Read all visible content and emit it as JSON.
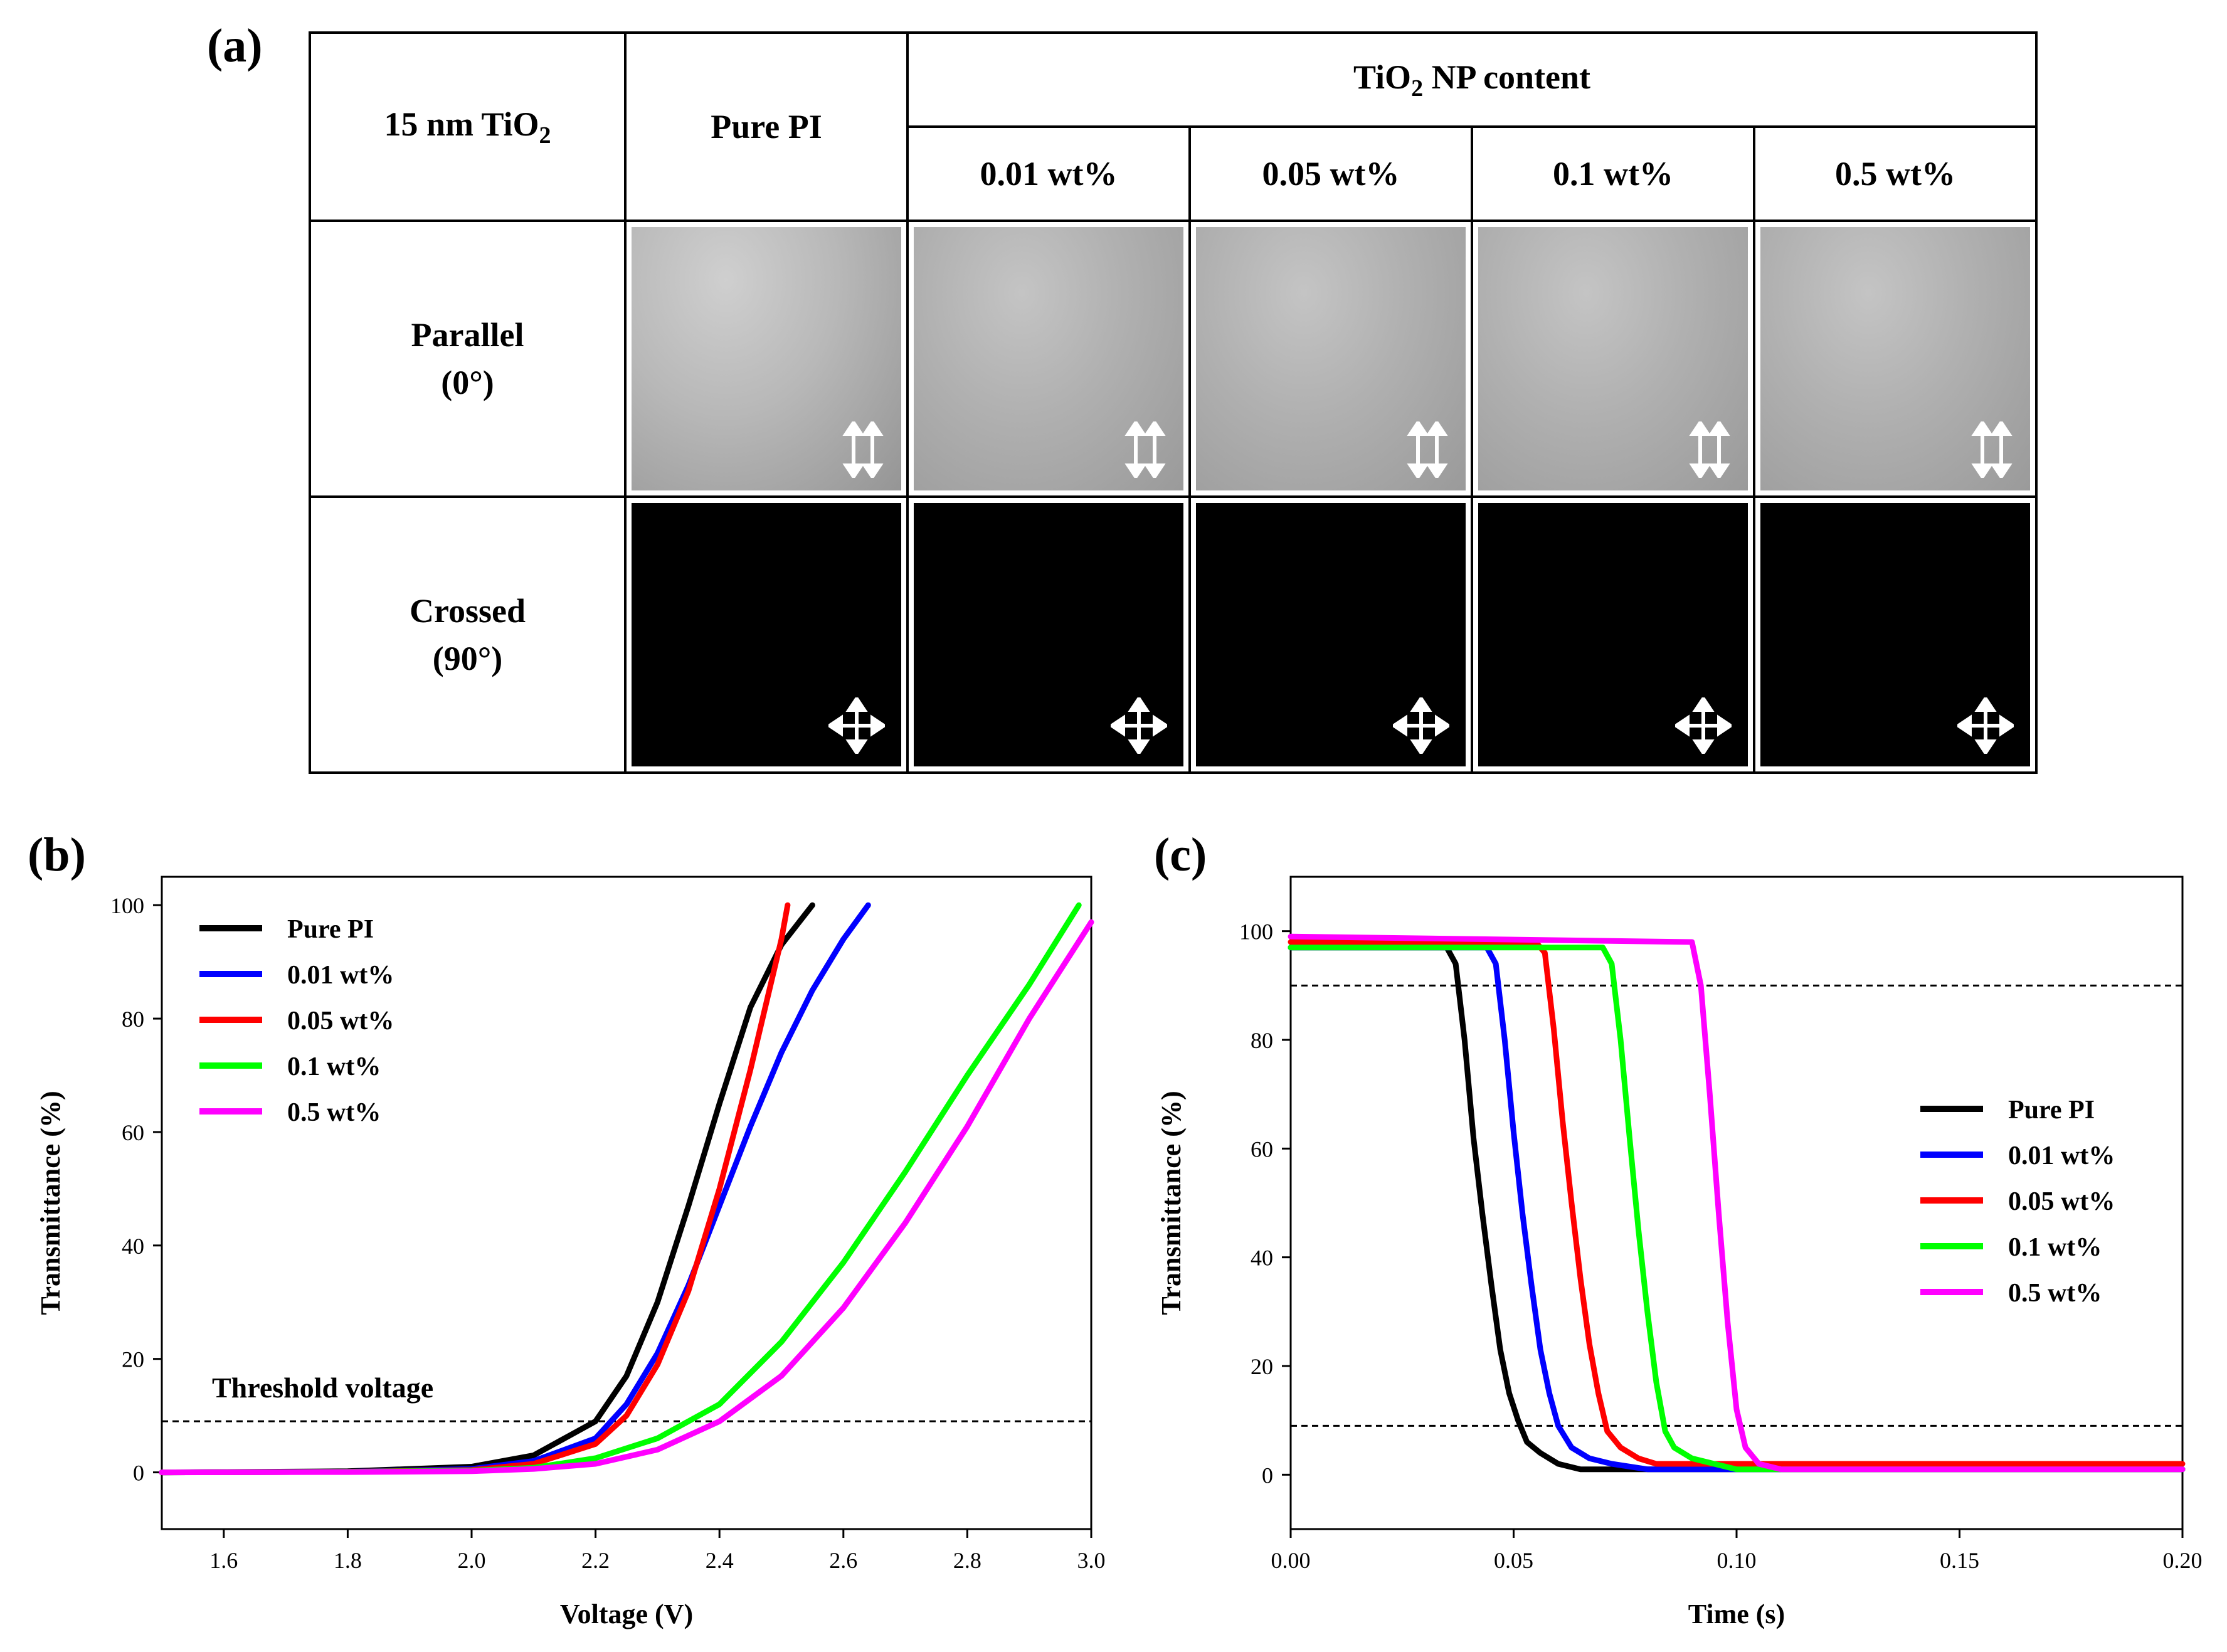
{
  "panels": {
    "a": "(a)",
    "b": "(b)",
    "c": "(c)"
  },
  "table": {
    "row_header": "15 nm TiO",
    "row_header_sub": "2",
    "col_pure": "Pure PI",
    "group_header_pre": "TiO",
    "group_header_sub": "2",
    "group_header_post": " NP content",
    "columns": [
      "0.01 wt%",
      "0.05 wt%",
      "0.1 wt%",
      "0.5 wt%"
    ],
    "rows": [
      {
        "label": "Parallel",
        "angle": "(0°)",
        "image": "gray-uniform-texture",
        "polarizer_icon": "parallel-arrows-icon"
      },
      {
        "label": "Crossed",
        "angle": "(90°)",
        "image": "black-dark-state",
        "polarizer_icon": "crossed-arrows-icon"
      }
    ]
  },
  "chart_data": [
    {
      "id": "b",
      "type": "line",
      "title": "",
      "xlabel": "Voltage (V)",
      "ylabel": "Transmittance (%)",
      "xlim": [
        1.5,
        3.0
      ],
      "ylim": [
        -10,
        105
      ],
      "xticks": [
        "1.6",
        "1.8",
        "2.0",
        "2.2",
        "2.4",
        "2.6",
        "2.8",
        "3.0"
      ],
      "yticks": [
        "0",
        "20",
        "40",
        "60",
        "80",
        "100"
      ],
      "grid": false,
      "legend_position": "top-left",
      "threshold_line": {
        "y": 9,
        "label": "Threshold voltage"
      },
      "series": [
        {
          "name": "Pure PI",
          "color": "#000000",
          "x": [
            1.5,
            1.8,
            2.0,
            2.1,
            2.2,
            2.25,
            2.3,
            2.35,
            2.4,
            2.45,
            2.5,
            2.55
          ],
          "y": [
            0,
            0.2,
            1,
            3,
            9,
            17,
            30,
            47,
            65,
            82,
            93,
            100
          ]
        },
        {
          "name": "0.01 wt%",
          "color": "#0000ff",
          "x": [
            1.5,
            1.8,
            2.0,
            2.1,
            2.2,
            2.25,
            2.3,
            2.35,
            2.4,
            2.45,
            2.5,
            2.55,
            2.6,
            2.64
          ],
          "y": [
            0,
            0.1,
            0.6,
            2,
            6,
            12,
            21,
            33,
            47,
            61,
            74,
            85,
            94,
            100
          ]
        },
        {
          "name": "0.05 wt%",
          "color": "#ff0000",
          "x": [
            1.5,
            1.8,
            2.0,
            2.1,
            2.2,
            2.25,
            2.3,
            2.35,
            2.4,
            2.45,
            2.5,
            2.51
          ],
          "y": [
            0,
            0.1,
            0.4,
            1.5,
            5,
            10,
            19,
            32,
            50,
            71,
            94,
            100
          ]
        },
        {
          "name": "0.1 wt%",
          "color": "#00ff00",
          "x": [
            1.5,
            1.8,
            2.0,
            2.1,
            2.2,
            2.3,
            2.4,
            2.5,
            2.6,
            2.7,
            2.8,
            2.9,
            2.98
          ],
          "y": [
            0,
            0.1,
            0.3,
            0.8,
            2.5,
            6,
            12,
            23,
            37,
            53,
            70,
            86,
            100
          ]
        },
        {
          "name": "0.5 wt%",
          "color": "#ff00ff",
          "x": [
            1.5,
            1.8,
            2.0,
            2.1,
            2.2,
            2.3,
            2.4,
            2.5,
            2.6,
            2.7,
            2.8,
            2.9,
            3.0
          ],
          "y": [
            0,
            0.05,
            0.2,
            0.6,
            1.5,
            4,
            9,
            17,
            29,
            44,
            61,
            80,
            97
          ]
        }
      ]
    },
    {
      "id": "c",
      "type": "line",
      "title": "",
      "xlabel": "Time (s)",
      "ylabel": "Transmittance (%)",
      "xlim": [
        0,
        0.2
      ],
      "ylim": [
        -10,
        110
      ],
      "xticks": [
        "0.00",
        "0.05",
        "0.10",
        "0.15",
        "0.20"
      ],
      "yticks": [
        "0",
        "20",
        "40",
        "60",
        "80",
        "100"
      ],
      "grid": false,
      "legend_position": "middle-right",
      "threshold_lines": [
        90,
        9
      ],
      "series": [
        {
          "name": "Pure PI",
          "color": "#000000",
          "x": [
            0,
            0.035,
            0.037,
            0.039,
            0.041,
            0.043,
            0.045,
            0.047,
            0.049,
            0.051,
            0.053,
            0.056,
            0.06,
            0.065,
            0.07,
            0.2
          ],
          "y": [
            97,
            97,
            94,
            80,
            62,
            48,
            35,
            23,
            15,
            10,
            6,
            4,
            2,
            1,
            1,
            1
          ]
        },
        {
          "name": "0.01 wt%",
          "color": "#0000ff",
          "x": [
            0,
            0.044,
            0.046,
            0.048,
            0.05,
            0.052,
            0.054,
            0.056,
            0.058,
            0.06,
            0.063,
            0.067,
            0.072,
            0.08,
            0.2
          ],
          "y": [
            97,
            97,
            94,
            80,
            63,
            48,
            35,
            23,
            15,
            9,
            5,
            3,
            2,
            1,
            1
          ]
        },
        {
          "name": "0.05 wt%",
          "color": "#ff0000",
          "x": [
            0,
            0.055,
            0.057,
            0.059,
            0.061,
            0.063,
            0.065,
            0.067,
            0.069,
            0.071,
            0.074,
            0.078,
            0.082,
            0.09,
            0.2
          ],
          "y": [
            98,
            98,
            96,
            82,
            65,
            50,
            36,
            24,
            15,
            8,
            5,
            3,
            2,
            2,
            2
          ]
        },
        {
          "name": "0.1 wt%",
          "color": "#00ff00",
          "x": [
            0,
            0.07,
            0.072,
            0.074,
            0.076,
            0.078,
            0.08,
            0.082,
            0.084,
            0.086,
            0.09,
            0.095,
            0.1,
            0.2
          ],
          "y": [
            97,
            97,
            94,
            80,
            62,
            45,
            30,
            17,
            8,
            5,
            3,
            2,
            1,
            1
          ]
        },
        {
          "name": "0.5 wt%",
          "color": "#ff00ff",
          "x": [
            0,
            0.09,
            0.092,
            0.094,
            0.096,
            0.098,
            0.1,
            0.102,
            0.105,
            0.11,
            0.2
          ],
          "y": [
            99,
            98,
            90,
            70,
            48,
            28,
            12,
            5,
            2,
            1,
            1
          ]
        }
      ]
    }
  ]
}
